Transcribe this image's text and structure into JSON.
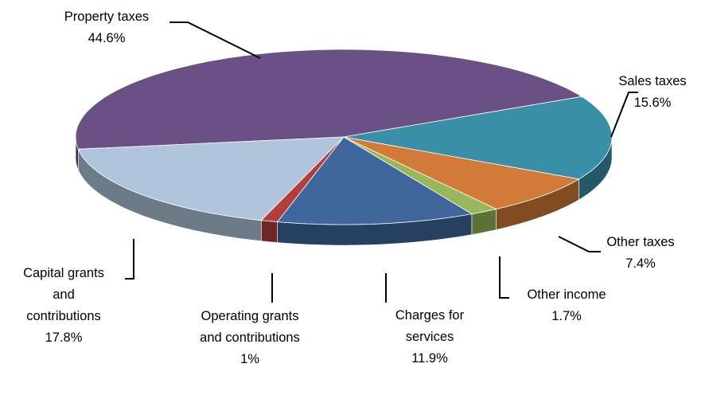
{
  "chart_data": {
    "type": "pie",
    "categories": [
      "Property taxes",
      "Sales taxes",
      "Other taxes",
      "Other income",
      "Charges for services",
      "Operating grants and contributions",
      "Capital grants and contributions"
    ],
    "values": [
      44.6,
      15.6,
      7.4,
      1.7,
      11.9,
      1,
      17.8
    ],
    "value_labels": [
      "44.6%",
      "15.6%",
      "7.4%",
      "1.7%",
      "11.9%",
      "1%",
      "17.8%"
    ],
    "colors": [
      "#6b5085",
      "#3a8fa8",
      "#d27a38",
      "#97b75a",
      "#3f679e",
      "#b23e3e",
      "#b0c4dc"
    ]
  }
}
